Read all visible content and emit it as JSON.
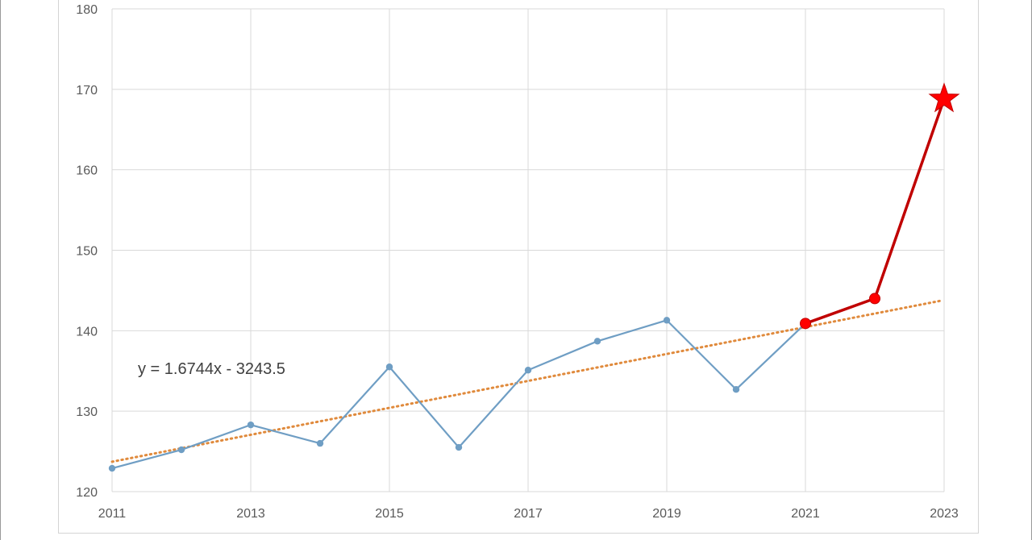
{
  "chart_data": {
    "type": "line",
    "xlim": [
      2011,
      2023
    ],
    "ylim": [
      120,
      180
    ],
    "x_ticks": [
      "2011",
      "2013",
      "2015",
      "2017",
      "2019",
      "2021",
      "2023"
    ],
    "y_ticks": [
      "120",
      "130",
      "140",
      "150",
      "160",
      "170",
      "180"
    ],
    "grid": true,
    "series": [
      {
        "color": "#6f9ec4",
        "marker": "circle",
        "points": [
          {
            "x": 2011,
            "y": 122.9
          },
          {
            "x": 2012,
            "y": 125.2
          },
          {
            "x": 2013,
            "y": 128.3
          },
          {
            "x": 2014,
            "y": 126.0
          },
          {
            "x": 2015,
            "y": 135.5
          },
          {
            "x": 2016,
            "y": 125.5
          },
          {
            "x": 2017,
            "y": 135.1
          },
          {
            "x": 2018,
            "y": 138.7
          },
          {
            "x": 2019,
            "y": 141.3
          },
          {
            "x": 2020,
            "y": 132.7
          },
          {
            "x": 2021,
            "y": 140.9
          }
        ]
      },
      {
        "color": "#c00000",
        "marker": "circle",
        "points": [
          {
            "x": 2021,
            "y": 140.9
          },
          {
            "x": 2022,
            "y": 144.0
          },
          {
            "x": 2023,
            "y": 168.8
          }
        ],
        "end_marker": "star",
        "end_marker_color": "#ff0000"
      }
    ],
    "trendline": {
      "style": "dotted",
      "color": "#e08a3c",
      "slope": 1.6744,
      "intercept": -3243.5,
      "x_range": [
        2011,
        2023
      ],
      "equation_label": "y = 1.6744x - 3243.5"
    }
  }
}
